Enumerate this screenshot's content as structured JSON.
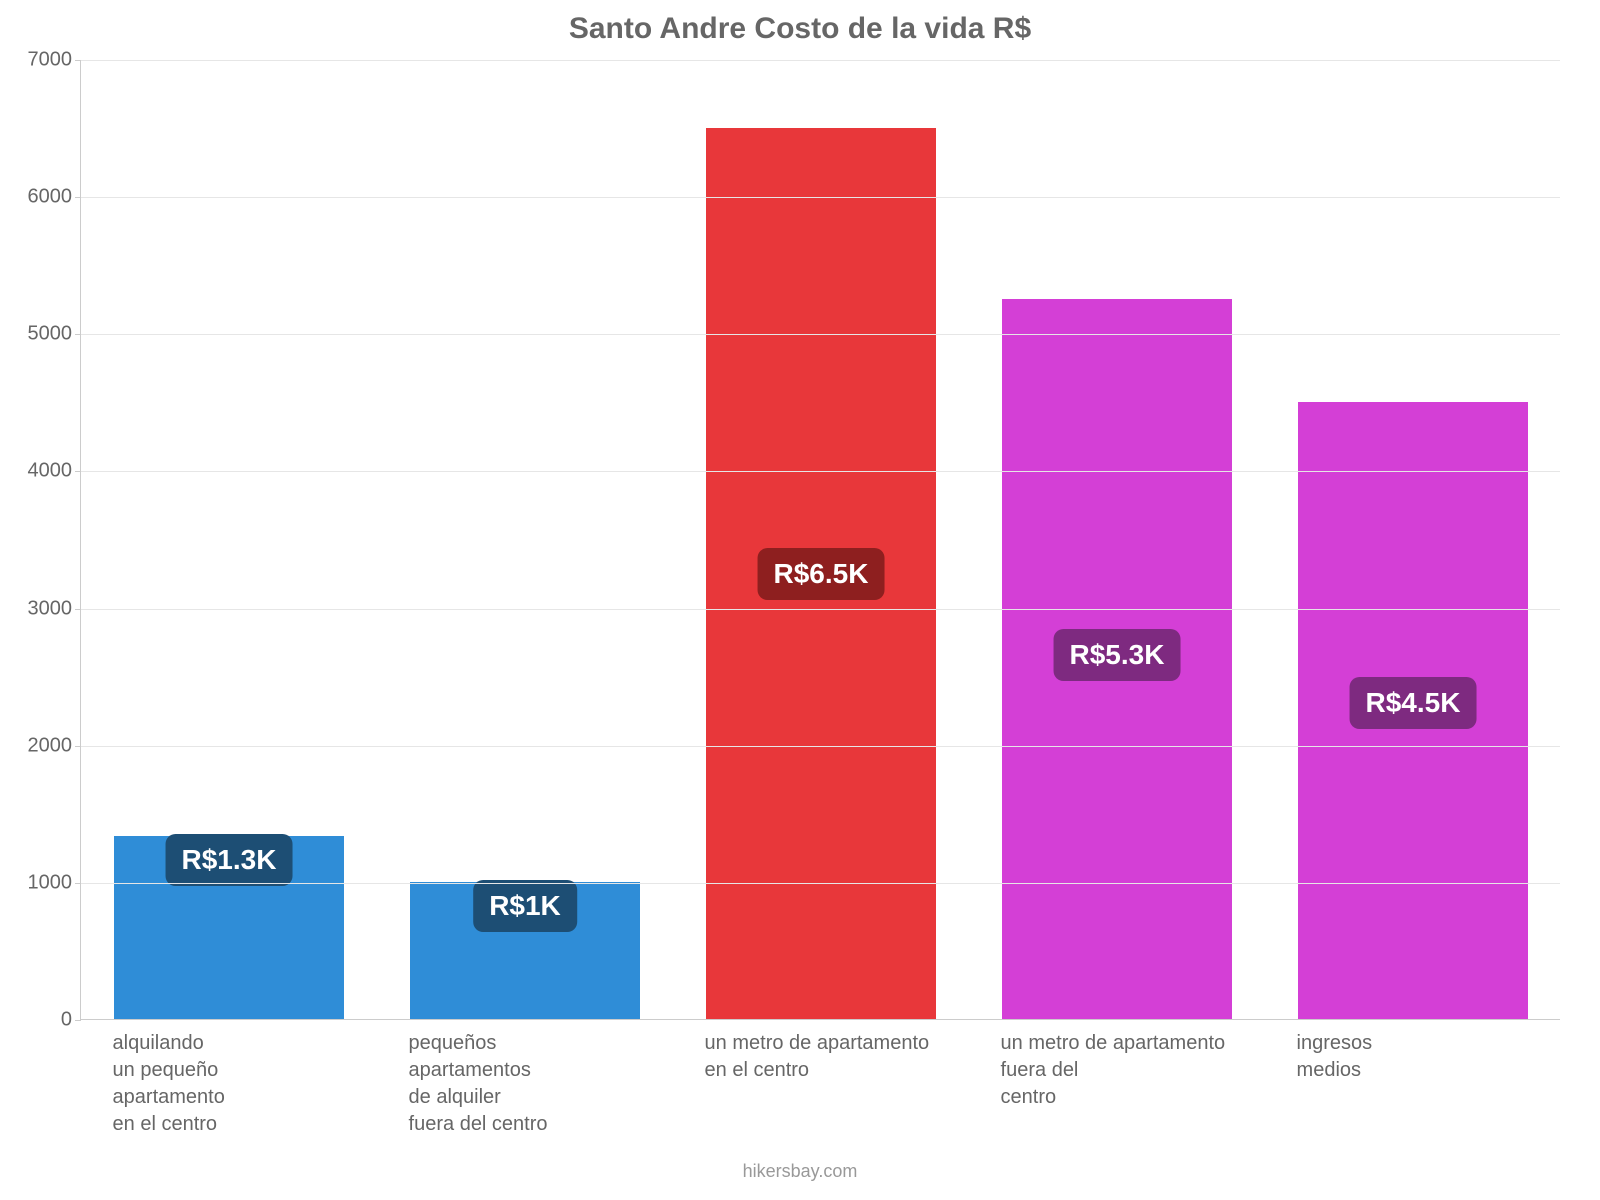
{
  "chart": {
    "type": "bar",
    "title": "Santo Andre Costo de la vida R$",
    "title_fontsize": 30,
    "title_color": "#666666",
    "background_color": "#ffffff",
    "grid_color": "#e6e6e6",
    "axis_color": "#cccccc",
    "tick_label_color": "#666666",
    "tick_fontsize": 20,
    "xlabel_fontsize": 20,
    "badge_fontsize": 28,
    "footer_fontsize": 18,
    "ylim": [
      0,
      7000
    ],
    "ytick_step": 1000,
    "yticks": [
      0,
      1000,
      2000,
      3000,
      4000,
      5000,
      6000,
      7000
    ],
    "bar_width": 0.78,
    "categories": [
      "alquilando\nun pequeño\napartamento\nen el centro",
      "pequeños\napartamentos\nde alquiler\nfuera del centro",
      "un metro de apartamento\nen el centro",
      "un metro de apartamento\nfuera del\ncentro",
      "ingresos\nmedios"
    ],
    "values": [
      1333,
      1000,
      6500,
      5250,
      4500
    ],
    "value_labels": [
      "R$1.3K",
      "R$1K",
      "R$6.5K",
      "R$5.3K",
      "R$4.5K"
    ],
    "bar_colors": [
      "#2f8dd7",
      "#2f8dd7",
      "#e8373a",
      "#d43fd6",
      "#d43fd6"
    ],
    "badge_colors": [
      "#1d4e74",
      "#1d4e74",
      "#8e1f1f",
      "#7e2a80",
      "#7e2a80"
    ],
    "badge_text_color": "#ffffff",
    "footer": "hikersbay.com"
  }
}
